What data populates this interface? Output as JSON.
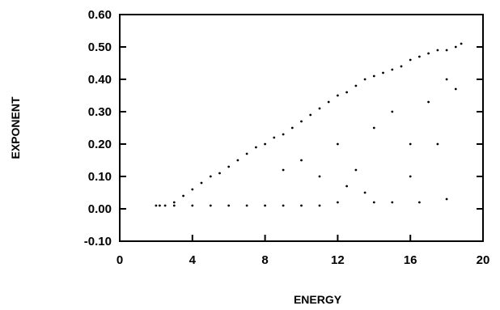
{
  "chart_data": {
    "type": "scatter",
    "title": "",
    "xlabel": "ENERGY",
    "ylabel": "EXPONENT",
    "xlim": [
      0,
      20
    ],
    "ylim": [
      -0.1,
      0.6
    ],
    "x_ticks": [
      "0",
      "4",
      "8",
      "12",
      "16",
      "20"
    ],
    "y_ticks": [
      "-0.10",
      "0.00",
      "0.10",
      "0.20",
      "0.30",
      "0.40",
      "0.50",
      "0.60"
    ],
    "grid": false,
    "legend": "none",
    "marker_color": "#000000",
    "series": [
      {
        "description_of_trend": "dense band rising from about 0.01 at energy 2 to about 0.50 at energy 19; flat band near 0.01 from energy 2 to 10; sparse points scattered below the main band",
        "points": [
          [
            2.0,
            0.01
          ],
          [
            2.5,
            0.01
          ],
          [
            3.0,
            0.02
          ],
          [
            3.5,
            0.04
          ],
          [
            4.0,
            0.06
          ],
          [
            4.5,
            0.08
          ],
          [
            5.0,
            0.1
          ],
          [
            5.5,
            0.11
          ],
          [
            6.0,
            0.13
          ],
          [
            6.5,
            0.15
          ],
          [
            7.0,
            0.17
          ],
          [
            7.5,
            0.19
          ],
          [
            8.0,
            0.2
          ],
          [
            8.5,
            0.22
          ],
          [
            9.0,
            0.23
          ],
          [
            9.5,
            0.25
          ],
          [
            10.0,
            0.27
          ],
          [
            10.5,
            0.29
          ],
          [
            11.0,
            0.31
          ],
          [
            11.5,
            0.33
          ],
          [
            12.0,
            0.35
          ],
          [
            12.5,
            0.36
          ],
          [
            13.0,
            0.38
          ],
          [
            13.5,
            0.4
          ],
          [
            14.0,
            0.41
          ],
          [
            14.5,
            0.42
          ],
          [
            15.0,
            0.43
          ],
          [
            15.5,
            0.44
          ],
          [
            16.0,
            0.46
          ],
          [
            16.5,
            0.47
          ],
          [
            17.0,
            0.48
          ],
          [
            17.5,
            0.49
          ],
          [
            18.0,
            0.49
          ],
          [
            18.5,
            0.5
          ],
          [
            18.8,
            0.51
          ],
          [
            2.2,
            0.01
          ],
          [
            3.0,
            0.01
          ],
          [
            4.0,
            0.01
          ],
          [
            5.0,
            0.01
          ],
          [
            6.0,
            0.01
          ],
          [
            7.0,
            0.01
          ],
          [
            8.0,
            0.01
          ],
          [
            9.0,
            0.01
          ],
          [
            10.0,
            0.01
          ],
          [
            11.0,
            0.01
          ],
          [
            12.0,
            0.02
          ],
          [
            14.0,
            0.02
          ],
          [
            15.0,
            0.02
          ],
          [
            16.5,
            0.02
          ],
          [
            18.0,
            0.03
          ],
          [
            9.0,
            0.12
          ],
          [
            10.0,
            0.15
          ],
          [
            11.0,
            0.1
          ],
          [
            12.0,
            0.2
          ],
          [
            13.0,
            0.12
          ],
          [
            14.0,
            0.25
          ],
          [
            15.0,
            0.3
          ],
          [
            16.0,
            0.2
          ],
          [
            17.0,
            0.33
          ],
          [
            18.0,
            0.4
          ],
          [
            18.5,
            0.37
          ],
          [
            17.5,
            0.2
          ],
          [
            16.0,
            0.1
          ],
          [
            13.5,
            0.05
          ],
          [
            12.5,
            0.07
          ]
        ]
      }
    ]
  }
}
